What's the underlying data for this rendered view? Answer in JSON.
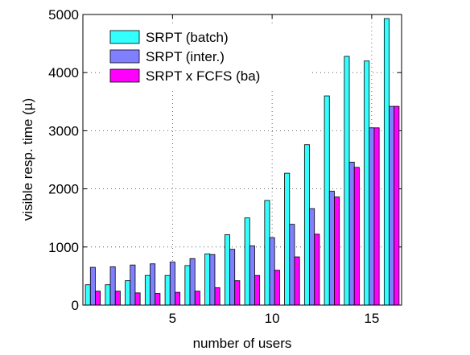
{
  "chart_data": {
    "type": "bar",
    "xlabel": "number of users",
    "ylabel": "visible resp. time (µ)",
    "categories": [
      1,
      2,
      3,
      4,
      5,
      6,
      7,
      8,
      9,
      10,
      11,
      12,
      13,
      14,
      15,
      16
    ],
    "series": [
      {
        "name": "SRPT (batch)",
        "color": "#33ffff",
        "values": [
          350,
          350,
          420,
          510,
          510,
          680,
          880,
          1210,
          1500,
          1800,
          2270,
          2760,
          3600,
          4280,
          4200,
          4930
        ]
      },
      {
        "name": "SRPT (inter.)",
        "color": "#8080ff",
        "values": [
          650,
          660,
          690,
          710,
          740,
          800,
          870,
          960,
          1020,
          1160,
          1390,
          1660,
          1960,
          2460,
          3050,
          3420
        ]
      },
      {
        "name": "SRPT x FCFS (ba)",
        "color": "#ff00ff",
        "values": [
          240,
          240,
          210,
          200,
          220,
          240,
          300,
          420,
          510,
          600,
          830,
          1220,
          1860,
          2370,
          3050,
          3420
        ]
      }
    ],
    "xlim": [
      0.5,
      16.5
    ],
    "xticks": [
      5,
      10,
      15
    ],
    "ylim": [
      0,
      5000
    ],
    "yticks": [
      0,
      1000,
      2000,
      3000,
      4000,
      5000
    ],
    "grid": true,
    "legend": "upper left"
  }
}
